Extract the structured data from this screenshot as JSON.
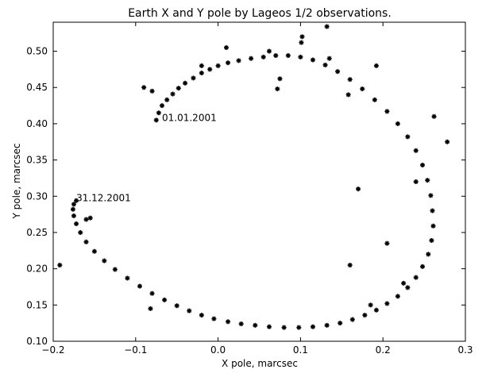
{
  "chart_data": {
    "type": "scatter",
    "title": "Earth X and Y pole by Lageos 1/2 observations.",
    "xlabel": "X pole, marcsec",
    "ylabel": "Y pole, marcsec",
    "xlim": [
      -0.2,
      0.3
    ],
    "ylim": [
      0.1,
      0.54
    ],
    "xticks": [
      -0.2,
      -0.1,
      0.0,
      0.1,
      0.2,
      0.3
    ],
    "xtick_labels": [
      "−0.2",
      "−0.1",
      "0.0",
      "0.1",
      "0.2",
      "0.3"
    ],
    "yticks": [
      0.1,
      0.15,
      0.2,
      0.25,
      0.3,
      0.35,
      0.4,
      0.45,
      0.5
    ],
    "ytick_labels": [
      "0.10",
      "0.15",
      "0.20",
      "0.25",
      "0.30",
      "0.35",
      "0.40",
      "0.45",
      "0.50"
    ],
    "grid": false,
    "marker_color": "#000000",
    "annotations": [
      {
        "text": "01.01.2001",
        "x": -0.068,
        "y": 0.404
      },
      {
        "text": "31.12.2001",
        "x": -0.172,
        "y": 0.293
      }
    ],
    "series": [
      {
        "x": [
          -0.075,
          -0.072,
          -0.068,
          -0.062,
          -0.055,
          -0.048,
          -0.04,
          -0.03,
          -0.02,
          -0.01,
          0.0,
          0.012,
          0.025,
          0.04,
          0.055,
          0.07,
          0.085,
          0.1,
          0.115,
          0.13,
          0.145,
          0.16,
          0.175,
          0.19,
          0.205,
          0.218,
          0.23,
          0.24,
          0.248,
          0.254,
          0.258,
          0.26,
          0.261,
          0.259,
          0.255,
          0.248,
          0.24,
          0.23,
          0.218,
          0.205,
          0.192,
          0.178,
          0.163,
          0.148,
          0.132,
          0.115,
          0.098,
          0.08,
          0.062,
          0.045,
          0.028,
          0.012,
          -0.005,
          -0.02,
          -0.035,
          -0.05,
          -0.065,
          -0.08,
          -0.095,
          -0.11,
          -0.125,
          -0.138,
          -0.15,
          -0.16,
          -0.167,
          -0.172,
          -0.175,
          -0.176,
          -0.175,
          -0.172
        ],
        "y": [
          0.405,
          0.415,
          0.425,
          0.433,
          0.441,
          0.449,
          0.456,
          0.463,
          0.47,
          0.475,
          0.48,
          0.484,
          0.487,
          0.49,
          0.492,
          0.494,
          0.494,
          0.492,
          0.488,
          0.481,
          0.472,
          0.461,
          0.448,
          0.433,
          0.417,
          0.4,
          0.382,
          0.363,
          0.343,
          0.322,
          0.301,
          0.28,
          0.259,
          0.239,
          0.22,
          0.203,
          0.188,
          0.174,
          0.162,
          0.152,
          0.143,
          0.136,
          0.13,
          0.125,
          0.122,
          0.12,
          0.119,
          0.119,
          0.12,
          0.122,
          0.124,
          0.127,
          0.131,
          0.136,
          0.142,
          0.149,
          0.157,
          0.166,
          0.176,
          0.187,
          0.199,
          0.211,
          0.224,
          0.237,
          0.25,
          0.262,
          0.273,
          0.282,
          0.289,
          0.294
        ]
      },
      {
        "x": [
          -0.09,
          -0.08,
          0.075,
          0.072,
          0.102,
          0.101,
          0.132,
          0.158,
          0.192,
          0.262,
          0.278,
          0.135,
          -0.192,
          0.01,
          0.062,
          -0.082,
          -0.02,
          0.24,
          0.185,
          0.17,
          0.225,
          -0.155,
          -0.16,
          0.205,
          0.16
        ],
        "y": [
          0.45,
          0.445,
          0.462,
          0.448,
          0.52,
          0.512,
          0.534,
          0.44,
          0.48,
          0.41,
          0.375,
          0.49,
          0.205,
          0.505,
          0.5,
          0.145,
          0.48,
          0.32,
          0.15,
          0.31,
          0.18,
          0.27,
          0.268,
          0.235,
          0.205
        ]
      }
    ]
  }
}
